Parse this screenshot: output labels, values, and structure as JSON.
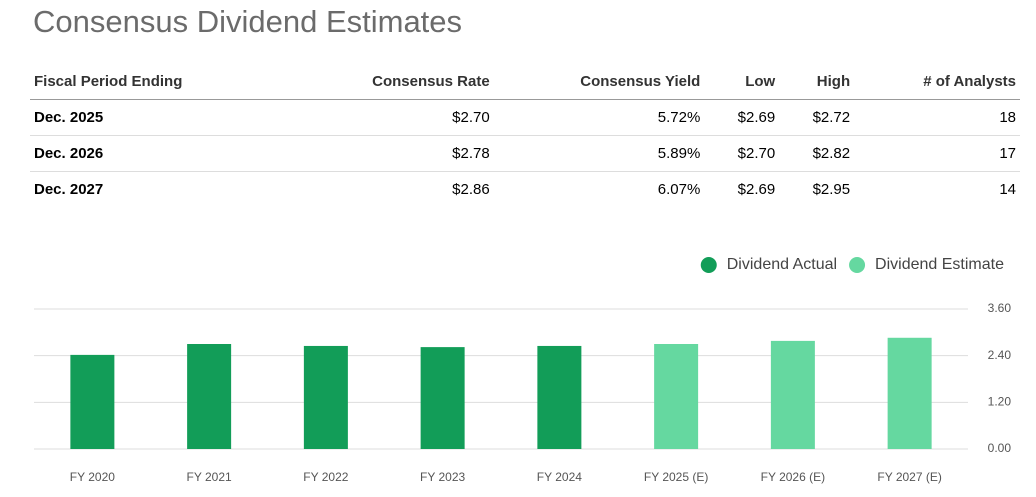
{
  "title": "Consensus Dividend Estimates",
  "table": {
    "header": [
      "Fiscal Period Ending",
      "Consensus Rate",
      "Consensus Yield",
      "Low",
      "High",
      "# of Analysts"
    ],
    "rows": [
      [
        "Dec. 2025",
        "$2.70",
        "5.72%",
        "$2.69",
        "$2.72",
        "18"
      ],
      [
        "Dec. 2026",
        "$2.78",
        "5.89%",
        "$2.70",
        "$2.82",
        "17"
      ],
      [
        "Dec. 2027",
        "$2.86",
        "6.07%",
        "$2.69",
        "$2.95",
        "14"
      ]
    ]
  },
  "chart_data": {
    "type": "bar",
    "categories": [
      "FY 2020",
      "FY 2021",
      "FY 2022",
      "FY 2023",
      "FY 2024",
      "FY 2025 (E)",
      "FY 2026 (E)",
      "FY 2027 (E)"
    ],
    "series": [
      {
        "name": "Dividend Actual",
        "color": "#129d58",
        "values": [
          2.42,
          2.7,
          2.65,
          2.62,
          2.65,
          null,
          null,
          null
        ]
      },
      {
        "name": "Dividend Estimate",
        "color": "#65d8a0",
        "values": [
          null,
          null,
          null,
          null,
          null,
          2.7,
          2.78,
          2.86
        ]
      }
    ],
    "ylim": [
      0,
      3.6
    ],
    "yticks": [
      {
        "value": 0,
        "label": "0.00"
      },
      {
        "value": 1.2,
        "label": "1.20"
      },
      {
        "value": 2.4,
        "label": "2.40"
      },
      {
        "value": 3.6,
        "label": "3.60"
      }
    ],
    "grid": true,
    "legend": "top-right"
  }
}
